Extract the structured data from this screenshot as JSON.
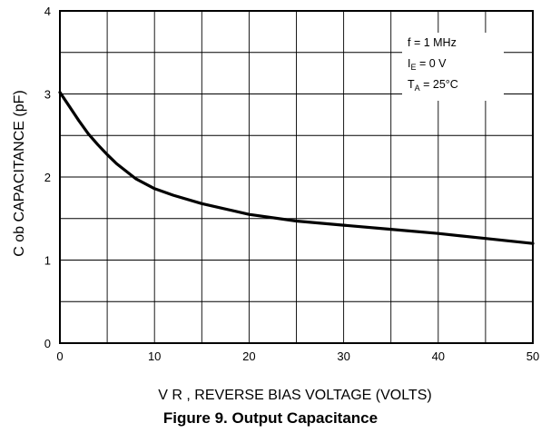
{
  "chart_data": {
    "type": "line",
    "caption": "Figure 9. Output Capacitance",
    "xlabel": "V R , REVERSE BIAS VOLTAGE (VOLTS)",
    "ylabel": "C ob CAPACITANCE (pF)",
    "xlim": [
      0,
      50
    ],
    "ylim": [
      0,
      4
    ],
    "xticks": [
      0,
      10,
      20,
      30,
      40,
      50
    ],
    "yticks": [
      0,
      1,
      2,
      3,
      4
    ],
    "x_minor_step": 5,
    "y_minor_step": 0.5,
    "grid": true,
    "legend_position": "top-right",
    "conditions": [
      {
        "main": "f = 1 MHz",
        "sub": "",
        "rest": ""
      },
      {
        "main": "I",
        "sub": "E",
        "rest": " = 0 V"
      },
      {
        "main": "T",
        "sub": "A",
        "rest": " = 25°C"
      }
    ],
    "series": [
      {
        "x": [
          0,
          1,
          2,
          3,
          4,
          5,
          6,
          8,
          10,
          12,
          15,
          20,
          25,
          30,
          35,
          40,
          45,
          50
        ],
        "y": [
          3.02,
          2.85,
          2.68,
          2.52,
          2.39,
          2.27,
          2.16,
          1.98,
          1.86,
          1.78,
          1.68,
          1.55,
          1.47,
          1.42,
          1.37,
          1.32,
          1.26,
          1.2
        ]
      }
    ]
  }
}
